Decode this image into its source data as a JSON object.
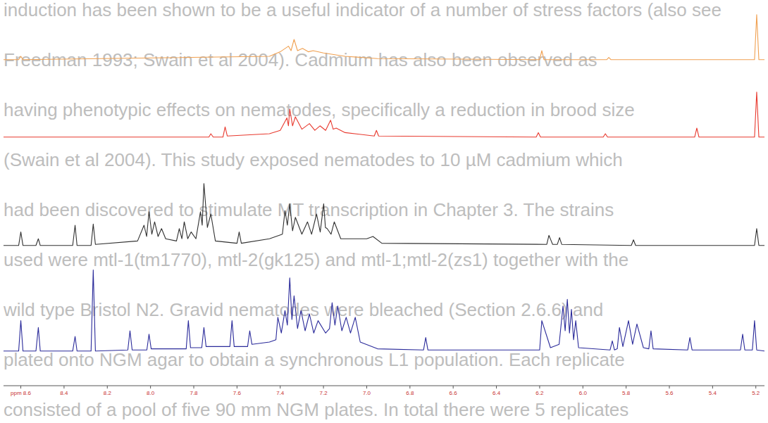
{
  "chart_data": {
    "type": "line",
    "xlim": [
      8.68,
      5.16
    ],
    "xticks": [
      {
        "value": 8.6,
        "label": "ppm 8.6"
      },
      8.4,
      8.2,
      {
        "value": 8,
        "label": "8.0"
      },
      7.8,
      7.6,
      7.4,
      7.2,
      {
        "value": 7,
        "label": "7.0"
      },
      6.8,
      6.6,
      6.4,
      6.2,
      {
        "value": 6,
        "label": "6.0"
      },
      5.8,
      5.6,
      5.4,
      5.2
    ],
    "ylim": [
      0,
      100
    ],
    "tick_labels": "x",
    "grid": false,
    "annotations": [
      "induction has been shown to be a useful indicator of a number of stress factors (also see",
      "Freedman 1993; Swain et al 2004). Cadmium has also been observed as",
      "having phenotypic effects on nematodes, specifically a reduction in brood size",
      "(Swain et al 2004). This study exposed nematodes to 10 µM cadmium which",
      "had been discovered to stimulate MT transcription in Chapter 3. The strains",
      "used were mtl-1(tm1770), mtl-2(gk125) and mtl-1;mtl-2(zs1) together with the",
      "wild type Bristol N2. Gravid nematodes were bleached (Section 2.6.6) and",
      "plated onto NGM agar to obtain a synchronous L1 population. Each replicate",
      "consisted of a pool of five 90 mm NGM plates. In total there were 5 replicates"
    ],
    "series": [
      {
        "color": "#f0a050",
        "x": [
          8.68,
          8.61,
          8.6,
          8.59,
          7.45,
          7.4,
          7.362,
          7.35,
          7.336,
          7.32,
          7.297,
          7.27,
          7.248,
          7.2,
          7.1,
          6.95,
          6.2,
          6.19,
          6.18,
          5.89,
          5.88,
          5.87,
          5.206,
          5.196,
          5.186,
          5.16
        ],
        "values": [
          2,
          2,
          5,
          2,
          5,
          9,
          14,
          10,
          20,
          10,
          12,
          9,
          10,
          8,
          5,
          3,
          2,
          10,
          2,
          2,
          4,
          2,
          2,
          42,
          2,
          2
        ]
      },
      {
        "color": "#e8392e",
        "x": [
          8.68,
          7.73,
          7.721,
          7.71,
          7.665,
          7.655,
          7.645,
          7.45,
          7.4,
          7.369,
          7.362,
          7.356,
          7.343,
          7.33,
          7.3,
          7.265,
          7.24,
          7.216,
          7.19,
          7.167,
          7.155,
          7.141,
          7.1,
          6.965,
          6.955,
          6.945,
          6.216,
          6.206,
          6.196,
          5.906,
          5.896,
          5.886,
          5.483,
          5.473,
          5.463,
          5.206,
          5.196,
          5.186,
          5.16
        ],
        "values": [
          2,
          2,
          5,
          2,
          2,
          11,
          3,
          5,
          8,
          19,
          12,
          27,
          12,
          20,
          9,
          14,
          8,
          12,
          8,
          17,
          9,
          10,
          6,
          3,
          8,
          3,
          2,
          6,
          2,
          2,
          5,
          2,
          2,
          10,
          2,
          2,
          42,
          2,
          2
        ]
      },
      {
        "color": "#303030",
        "x": [
          8.68,
          8.61,
          8.6,
          8.59,
          8.53,
          8.519,
          8.51,
          8.36,
          8.349,
          8.34,
          8.275,
          8.265,
          8.255,
          8.06,
          8.03,
          8.018,
          8.007,
          7.994,
          7.981,
          7.965,
          7.949,
          7.93,
          7.88,
          7.867,
          7.855,
          7.844,
          7.828,
          7.812,
          7.79,
          7.769,
          7.761,
          7.753,
          7.737,
          7.721,
          7.7,
          7.6,
          7.59,
          7.58,
          7.45,
          7.39,
          7.378,
          7.367,
          7.356,
          7.343,
          7.33,
          7.3,
          7.274,
          7.255,
          7.232,
          7.215,
          7.199,
          7.191,
          7.183,
          7.165,
          7.15,
          7.12,
          7.0,
          6.971,
          6.93,
          6.167,
          6.157,
          6.14,
          6.118,
          6.108,
          6.098,
          5.776,
          5.766,
          5.756,
          5.206,
          5.196,
          5.186,
          5.16
        ],
        "values": [
          2,
          2,
          14,
          2,
          2,
          8,
          2,
          2,
          20,
          2,
          2,
          21,
          3,
          6,
          20,
          10,
          32,
          12,
          23,
          10,
          17,
          8,
          6,
          17,
          8,
          23,
          8,
          14,
          8,
          32,
          20,
          57,
          18,
          30,
          6,
          4,
          14,
          4,
          8,
          12,
          33,
          20,
          39,
          15,
          27,
          12,
          23,
          12,
          30,
          14,
          39,
          18,
          17,
          12,
          23,
          8,
          8,
          10,
          4,
          3,
          11,
          3,
          3,
          9,
          3,
          2,
          7,
          2,
          2,
          17,
          2,
          2
        ]
      },
      {
        "color": "#2a2a9a",
        "x": [
          8.68,
          8.61,
          8.6,
          8.59,
          8.53,
          8.519,
          8.51,
          8.36,
          8.349,
          8.34,
          8.275,
          8.265,
          8.255,
          8.105,
          8.095,
          8.085,
          8.017,
          8.007,
          7.997,
          7.835,
          7.825,
          7.815,
          7.763,
          7.753,
          7.743,
          7.633,
          7.623,
          7.613,
          7.551,
          7.541,
          7.531,
          7.45,
          7.42,
          7.411,
          7.395,
          7.378,
          7.367,
          7.356,
          7.346,
          7.336,
          7.32,
          7.304,
          7.285,
          7.265,
          7.245,
          7.225,
          7.19,
          7.172,
          7.16,
          7.147,
          7.134,
          7.115,
          7.095,
          7.075,
          7.053,
          7.03,
          6.95,
          6.737,
          6.727,
          6.717,
          6.2,
          6.19,
          6.15,
          6.11,
          6.092,
          6.082,
          6.072,
          6.062,
          6.053,
          6.043,
          6.033,
          6.02,
          5.874,
          5.864,
          5.854,
          5.841,
          5.831,
          5.815,
          5.789,
          5.77,
          5.75,
          5.72,
          5.695,
          5.685,
          5.675,
          5.515,
          5.505,
          5.495,
          5.271,
          5.261,
          5.251,
          5.216,
          5.206,
          5.196,
          5.16
        ],
        "values": [
          2,
          2,
          29,
          2,
          2,
          23,
          2,
          2,
          15,
          2,
          2,
          74,
          2,
          3,
          20,
          3,
          3,
          17,
          4,
          4,
          29,
          5,
          5,
          23,
          6,
          6,
          29,
          6,
          6,
          20,
          8,
          10,
          12,
          32,
          18,
          38,
          25,
          67,
          30,
          51,
          22,
          38,
          20,
          35,
          18,
          29,
          18,
          22,
          45,
          25,
          42,
          20,
          32,
          18,
          32,
          10,
          4,
          3,
          14,
          3,
          3,
          29,
          5,
          8,
          42,
          20,
          48,
          18,
          39,
          12,
          29,
          5,
          3,
          11,
          3,
          4,
          23,
          6,
          29,
          8,
          26,
          5,
          4,
          20,
          4,
          3,
          14,
          3,
          3,
          17,
          3,
          3,
          29,
          3,
          2
        ]
      }
    ]
  }
}
